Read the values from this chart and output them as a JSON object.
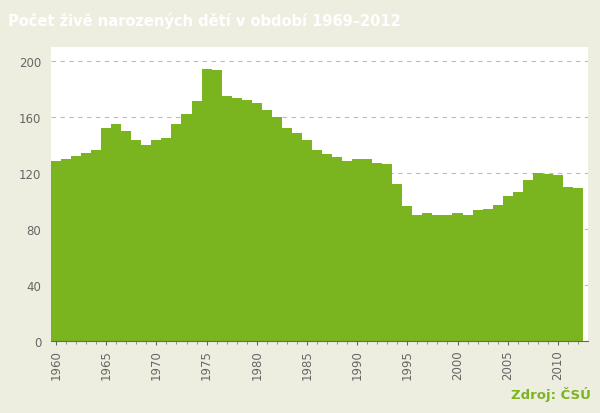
{
  "title": "Počet živě narozených dětí v období 1969–2012",
  "source_text": "Zdroj: ČSÚ",
  "bar_color": "#7ab520",
  "background_color": "#ffffff",
  "header_bg_color": "#7ab520",
  "header_text_color": "#ffffff",
  "footer_bg_color": "#eeeee0",
  "source_color": "#7ab520",
  "grid_color": "#bbbbbb",
  "axis_color": "#666666",
  "xlim": [
    1959.5,
    2013.0
  ],
  "ylim": [
    0,
    210
  ],
  "yticks": [
    0,
    40,
    80,
    120,
    160,
    200
  ],
  "xticks": [
    1960,
    1965,
    1970,
    1975,
    1980,
    1985,
    1990,
    1995,
    2000,
    2005,
    2010
  ],
  "years": [
    1960,
    1961,
    1962,
    1963,
    1964,
    1965,
    1966,
    1967,
    1968,
    1969,
    1970,
    1971,
    1972,
    1973,
    1974,
    1975,
    1976,
    1977,
    1978,
    1979,
    1980,
    1981,
    1982,
    1983,
    1984,
    1985,
    1986,
    1987,
    1988,
    1989,
    1990,
    1991,
    1992,
    1993,
    1994,
    1995,
    1996,
    1997,
    1998,
    1999,
    2000,
    2001,
    2002,
    2003,
    2004,
    2005,
    2006,
    2007,
    2008,
    2009,
    2010,
    2011,
    2012
  ],
  "values": [
    128,
    130,
    132,
    134,
    136,
    152,
    155,
    150,
    143,
    140,
    143,
    145,
    155,
    162,
    171,
    194,
    193,
    175,
    173,
    172,
    170,
    165,
    160,
    152,
    148,
    143,
    136,
    133,
    131,
    128,
    130,
    130,
    127,
    126,
    112,
    96,
    90,
    91,
    90,
    90,
    91,
    90,
    93,
    94,
    97,
    103,
    106,
    115,
    120,
    119,
    118,
    110,
    109
  ]
}
